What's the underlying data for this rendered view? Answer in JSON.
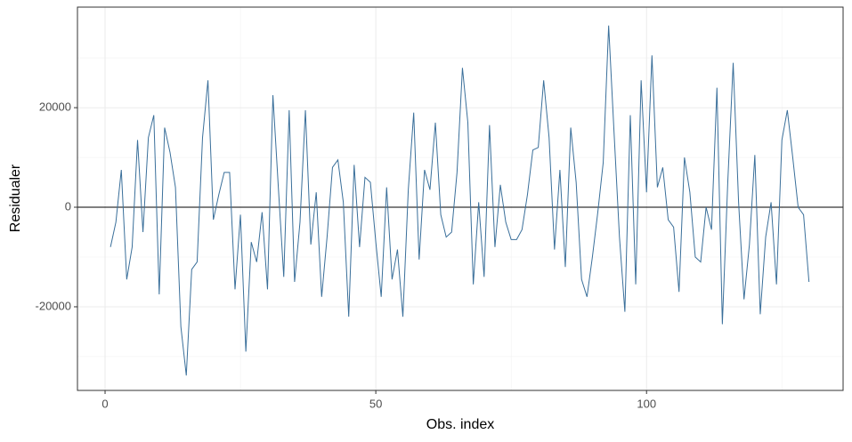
{
  "chart_data": {
    "type": "line",
    "x_label": "Obs. index",
    "y_label": "Residualer",
    "x": [
      1,
      2,
      3,
      4,
      5,
      6,
      7,
      8,
      9,
      10,
      11,
      12,
      13,
      14,
      15,
      16,
      17,
      18,
      19,
      20,
      21,
      22,
      23,
      24,
      25,
      26,
      27,
      28,
      29,
      30,
      31,
      32,
      33,
      34,
      35,
      36,
      37,
      38,
      39,
      40,
      41,
      42,
      43,
      44,
      45,
      46,
      47,
      48,
      49,
      50,
      51,
      52,
      53,
      54,
      55,
      56,
      57,
      58,
      59,
      60,
      61,
      62,
      63,
      64,
      65,
      66,
      67,
      68,
      69,
      70,
      71,
      72,
      73,
      74,
      75,
      76,
      77,
      78,
      79,
      80,
      81,
      82,
      83,
      84,
      85,
      86,
      87,
      88,
      89,
      90,
      91,
      92,
      93,
      94,
      95,
      96,
      97,
      98,
      99,
      100,
      101,
      102,
      103,
      104,
      105,
      106,
      107,
      108,
      109,
      110,
      111,
      112,
      113,
      114,
      115,
      116,
      117,
      118,
      119,
      120,
      121,
      122,
      123,
      124,
      125,
      126,
      127,
      128,
      129,
      130
    ],
    "values": [
      -8000,
      -3000,
      7500,
      -14500,
      -8000,
      13500,
      -5000,
      14000,
      18500,
      -17500,
      16000,
      11000,
      4000,
      -24000,
      -33800,
      -12500,
      -11000,
      14000,
      25500,
      -2500,
      2500,
      7000,
      7000,
      -16500,
      -1500,
      -29000,
      -7000,
      -11000,
      -1000,
      -16500,
      22500,
      4000,
      -14000,
      19500,
      -15000,
      -3000,
      19500,
      -7500,
      3000,
      -18000,
      -6000,
      8000,
      9500,
      1000,
      -22000,
      8500,
      -8000,
      6000,
      5000,
      -7000,
      -18000,
      4000,
      -14500,
      -8500,
      -22000,
      3500,
      19000,
      -10500,
      7500,
      3500,
      17000,
      -1500,
      -6000,
      -5000,
      7000,
      28000,
      17000,
      -15500,
      1000,
      -14000,
      16500,
      -8000,
      4500,
      -3000,
      -6500,
      -6500,
      -4500,
      2500,
      11500,
      12000,
      25500,
      14000,
      -8500,
      7500,
      -12000,
      16000,
      5000,
      -14500,
      -18000,
      -10000,
      -1000,
      9000,
      36500,
      15000,
      -6000,
      -21000,
      18500,
      -15500,
      25500,
      3000,
      30500,
      4000,
      8000,
      -2500,
      -4000,
      -17000,
      10000,
      3000,
      -10000,
      -11000,
      0,
      -4500,
      24000,
      -23500,
      5000,
      29000,
      1000,
      -18500,
      -7500,
      10500,
      -21500,
      -6000,
      1000,
      -15500,
      13500,
      19500,
      10000,
      0,
      -1500,
      -15000
    ],
    "color": "#3a6f9a",
    "xlim": [
      -5.1,
      136.3
    ],
    "ylim": [
      -36800,
      40200
    ],
    "xticks": [
      0,
      50,
      100
    ],
    "yticks": [
      -20000,
      0,
      20000
    ],
    "x_minor_grid": [
      25,
      75,
      125
    ],
    "y_minor_grid": [
      -30000,
      -10000,
      10000,
      30000
    ],
    "hline": 0,
    "grid": true
  }
}
